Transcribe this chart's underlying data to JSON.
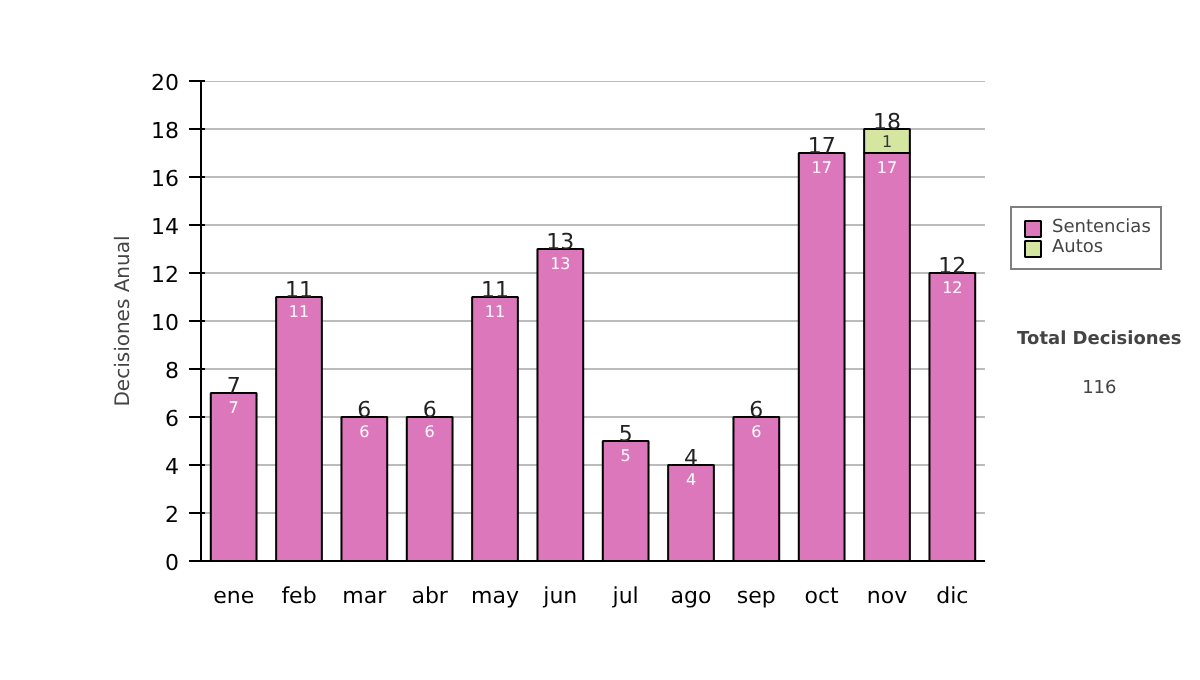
{
  "chart_data": {
    "type": "bar",
    "stacked": true,
    "categories": [
      "ene",
      "feb",
      "mar",
      "abr",
      "may",
      "jun",
      "jul",
      "ago",
      "sep",
      "oct",
      "nov",
      "dic"
    ],
    "series": [
      {
        "name": "Sentencias",
        "color": "#dd77bb",
        "values": [
          7,
          11,
          6,
          6,
          11,
          13,
          5,
          4,
          6,
          17,
          17,
          12
        ]
      },
      {
        "name": "Autos",
        "color": "#d4e6a0",
        "values": [
          null,
          null,
          null,
          null,
          null,
          null,
          null,
          null,
          null,
          null,
          1,
          null
        ]
      }
    ],
    "totals": [
      "7",
      "11",
      "6",
      "6",
      "11",
      "13",
      "5",
      "4",
      "6",
      "17",
      "18",
      "12"
    ],
    "data_labels": true,
    "ylabel": "Decisiones Anual",
    "ylim": [
      0,
      20
    ],
    "yticks": [
      0,
      2,
      4,
      6,
      8,
      10,
      12,
      14,
      16,
      18,
      20
    ],
    "grid": "y",
    "legend": "right",
    "annotations": [
      "Total Decisiones",
      "116"
    ]
  }
}
